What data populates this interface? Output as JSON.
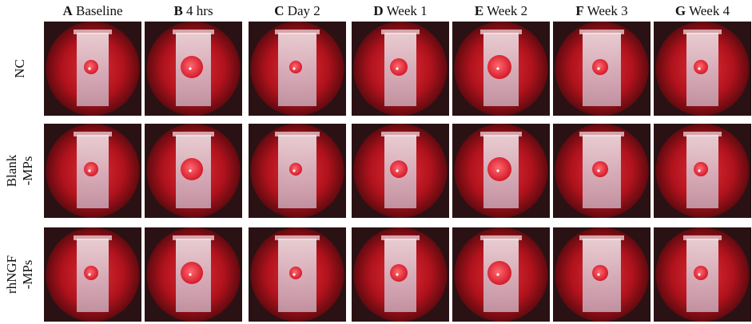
{
  "columns": [
    {
      "letter": "A",
      "label": "Baseline"
    },
    {
      "letter": "B",
      "label": "4 hrs"
    },
    {
      "letter": "C",
      "label": "Day 2"
    },
    {
      "letter": "D",
      "label": "Week 1"
    },
    {
      "letter": "E",
      "label": "Week 2"
    },
    {
      "letter": "F",
      "label": "Week 3"
    },
    {
      "letter": "G",
      "label": "Week 4"
    }
  ],
  "rows": [
    {
      "lines": [
        "NC"
      ]
    },
    {
      "lines": [
        "Blank",
        "-MPs"
      ]
    },
    {
      "lines": [
        "rhNGF",
        "-MPs"
      ]
    }
  ]
}
